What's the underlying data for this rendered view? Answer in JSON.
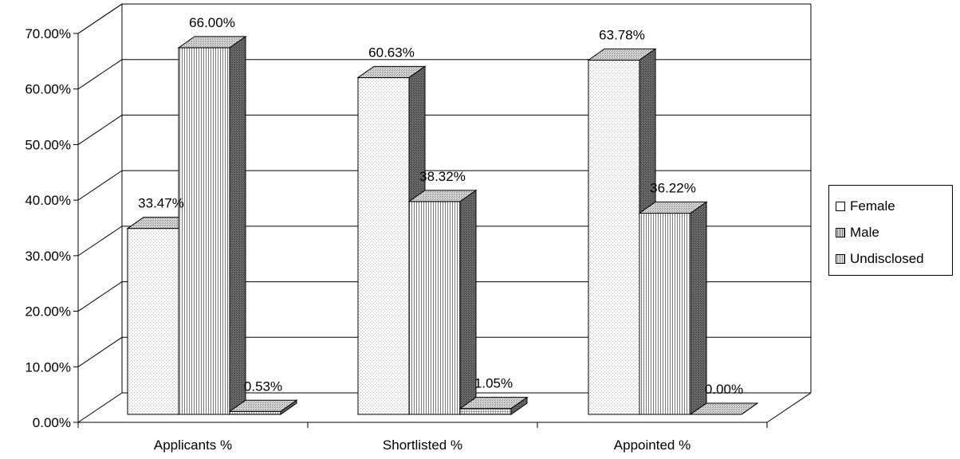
{
  "chart_data": {
    "type": "bar",
    "categories": [
      "Applicants %",
      "Shortlisted %",
      "Appointed %"
    ],
    "series": [
      {
        "name": "Female",
        "values": [
          33.47,
          60.63,
          63.78
        ],
        "labels": [
          "33.47%",
          "60.63%",
          "63.78%"
        ],
        "fill": "female"
      },
      {
        "name": "Male",
        "values": [
          66.0,
          38.32,
          36.22
        ],
        "labels": [
          "66.00%",
          "38.32%",
          "36.22%"
        ],
        "fill": "male"
      },
      {
        "name": "Undisclosed",
        "values": [
          0.53,
          1.05,
          0.0
        ],
        "labels": [
          "0.53%",
          "1.05%",
          "0.00%"
        ],
        "fill": "undisclosed"
      }
    ],
    "ylim": [
      0,
      70
    ],
    "yticks": [
      "0.00%",
      "10.00%",
      "20.00%",
      "30.00%",
      "40.00%",
      "50.00%",
      "60.00%",
      "70.00%"
    ],
    "grid": true,
    "three_d": true,
    "legend_position": "right"
  },
  "colors": {
    "background": "#ffffff",
    "gridline": "#000000",
    "top_face": "#c8c8c8",
    "side_face": "#6e6e6e"
  }
}
